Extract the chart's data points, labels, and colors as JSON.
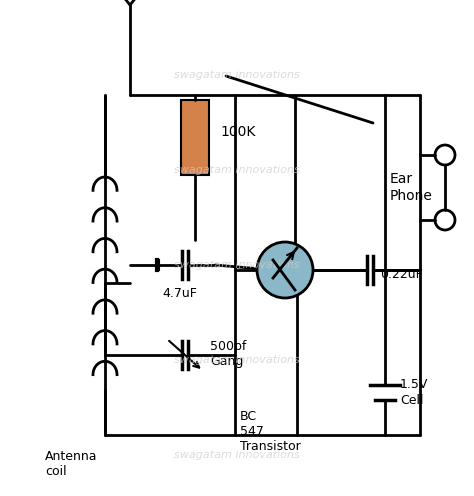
{
  "bg_color": "#ffffff",
  "line_color": "#000000",
  "resistor_color": "#D4824A",
  "transistor_fill": "#8BB8C8",
  "watermark": "swagatam innovations",
  "watermark_color": "#cccccc",
  "labels": {
    "resistor": "100K",
    "cap1": "4.7uF",
    "cap2": "500pf\nGang",
    "cap3": "0.22uF",
    "battery": "1.5V\nCell",
    "transistor": "BC\n547\nTransistor",
    "coil": "Antenna\ncoil",
    "earphone": "Ear\nPhone"
  },
  "figsize": [
    4.74,
    4.96
  ],
  "dpi": 100
}
